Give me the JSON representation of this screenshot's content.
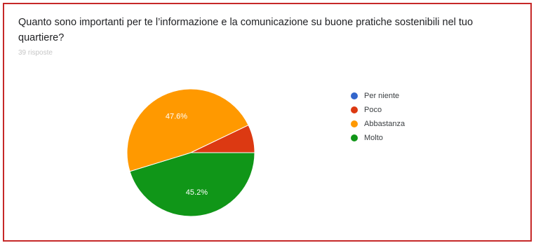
{
  "question": {
    "title": "Quanto sono importanti per te l’informazione e la comunicazione su buone pratiche sostenibili nel tuo quartiere?",
    "response_count": "39 risposte"
  },
  "chart_data": {
    "type": "pie",
    "categories": [
      "Per niente",
      "Poco",
      "Abbastanza",
      "Molto"
    ],
    "values": [
      0,
      7.1,
      47.6,
      45.2
    ],
    "data_labels": [
      "",
      "",
      "47.6%",
      "45.2%"
    ],
    "colors": [
      "#3366cc",
      "#dc3912",
      "#ff9900",
      "#109618"
    ],
    "legend_position": "right"
  }
}
